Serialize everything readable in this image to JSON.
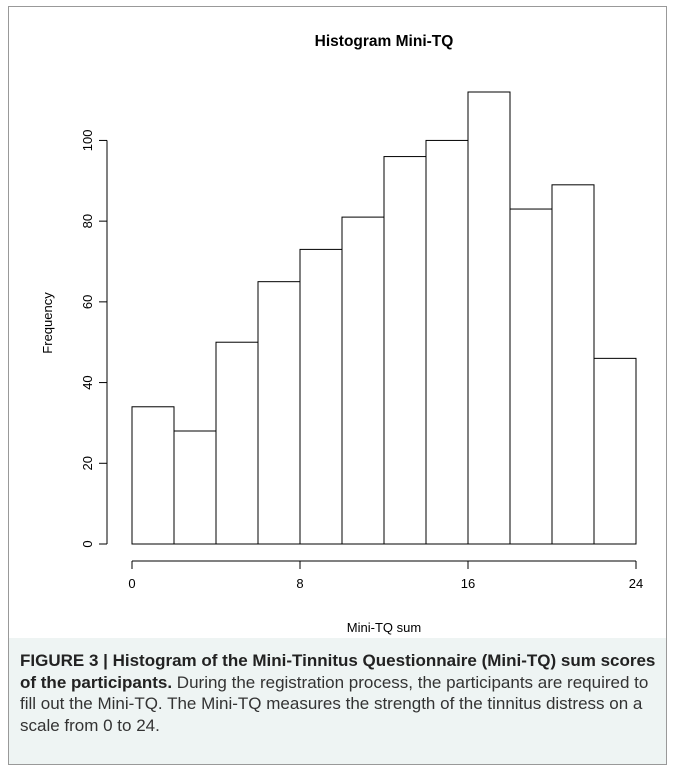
{
  "chart_data": {
    "type": "bar",
    "title": "Histogram Mini-TQ",
    "xlabel": "Mini-TQ sum",
    "ylabel": "Frequency",
    "bin_edges": [
      0,
      2,
      4,
      6,
      8,
      10,
      12,
      14,
      16,
      18,
      20,
      22,
      24
    ],
    "values": [
      34,
      28,
      50,
      65,
      73,
      81,
      96,
      100,
      112,
      83,
      89,
      46
    ],
    "xlim": [
      0,
      24
    ],
    "ylim": [
      0,
      112
    ],
    "x_ticks": [
      0,
      8,
      16,
      24
    ],
    "y_ticks": [
      0,
      20,
      40,
      60,
      80,
      100
    ],
    "grid": false,
    "bar_fill": "#ffffff",
    "bar_stroke": "#000000"
  },
  "caption": {
    "label": "FIGURE 3 | Histogram of the Mini-Tinnitus Questionnaire (Mini-TQ) sum scores of the participants.",
    "text": " During the registration process, the participants are required to fill out the Mini-TQ. The Mini-TQ measures the strength of the tinnitus distress on a scale from 0 to 24."
  },
  "colors": {
    "caption_background": "#eef4f3",
    "panel_border": "#999999"
  }
}
